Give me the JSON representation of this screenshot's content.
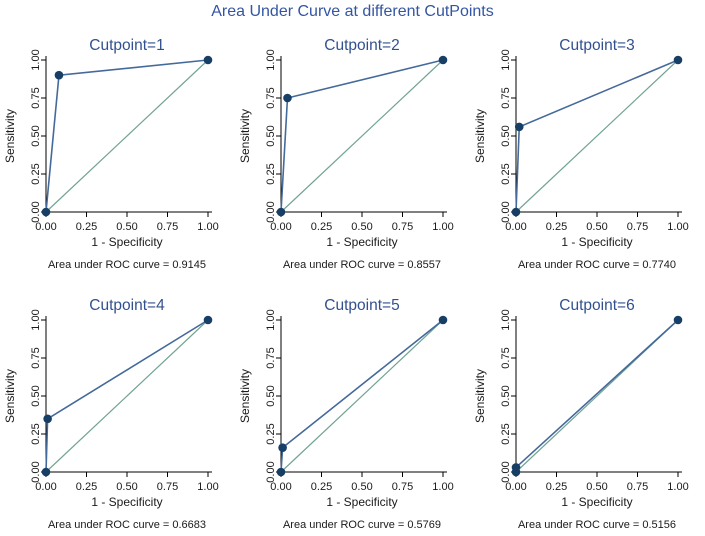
{
  "figure_title": "Area Under Curve at different CutPoints",
  "colors": {
    "figure_title": "#3355a4",
    "panel_title": "#32508f",
    "roc_line": "#44699b",
    "marker": "#173f66",
    "ref_line": "#72a493",
    "axis": "#000000",
    "text": "#1a1a1a"
  },
  "axis": {
    "xlabel": "1 - Specificity",
    "ylabel": "Sensitivity",
    "xlim": [
      0,
      1
    ],
    "ylim": [
      0,
      1
    ],
    "ticks": [
      0,
      0.25,
      0.5,
      0.75,
      1
    ],
    "tick_labels": [
      "0.00",
      "0.25",
      "0.50",
      "0.75",
      "1.00"
    ],
    "grid": "off",
    "legend": "none"
  },
  "chart_data": [
    {
      "type": "line",
      "title": "Cutpoint=1",
      "caption": "Area under ROC curve = 0.9145",
      "auc": 0.9145,
      "xlabel": "1 - Specificity",
      "ylabel": "Sensitivity",
      "xlim": [
        0,
        1
      ],
      "ylim": [
        0,
        1
      ],
      "roc_points": [
        [
          0,
          0
        ],
        [
          0.08,
          0.9
        ],
        [
          1,
          1
        ]
      ],
      "ref_line": [
        [
          0,
          0
        ],
        [
          1,
          1
        ]
      ]
    },
    {
      "type": "line",
      "title": "Cutpoint=2",
      "caption": "Area under ROC curve = 0.8557",
      "auc": 0.8557,
      "xlabel": "1 - Specificity",
      "ylabel": "Sensitivity",
      "xlim": [
        0,
        1
      ],
      "ylim": [
        0,
        1
      ],
      "roc_points": [
        [
          0,
          0
        ],
        [
          0.04,
          0.75
        ],
        [
          1,
          1
        ]
      ],
      "ref_line": [
        [
          0,
          0
        ],
        [
          1,
          1
        ]
      ]
    },
    {
      "type": "line",
      "title": "Cutpoint=3",
      "caption": "Area under ROC curve = 0.7740",
      "auc": 0.774,
      "xlabel": "1 - Specificity",
      "ylabel": "Sensitivity",
      "xlim": [
        0,
        1
      ],
      "ylim": [
        0,
        1
      ],
      "roc_points": [
        [
          0,
          0
        ],
        [
          0.02,
          0.56
        ],
        [
          1,
          1
        ]
      ],
      "ref_line": [
        [
          0,
          0
        ],
        [
          1,
          1
        ]
      ]
    },
    {
      "type": "line",
      "title": "Cutpoint=4",
      "caption": "Area under ROC curve = 0.6683",
      "auc": 0.6683,
      "xlabel": "1 - Specificity",
      "ylabel": "Sensitivity",
      "xlim": [
        0,
        1
      ],
      "ylim": [
        0,
        1
      ],
      "roc_points": [
        [
          0,
          0
        ],
        [
          0.01,
          0.35
        ],
        [
          1,
          1
        ]
      ],
      "ref_line": [
        [
          0,
          0
        ],
        [
          1,
          1
        ]
      ]
    },
    {
      "type": "line",
      "title": "Cutpoint=5",
      "caption": "Area under ROC curve = 0.5769",
      "auc": 0.5769,
      "xlabel": "1 - Specificity",
      "ylabel": "Sensitivity",
      "xlim": [
        0,
        1
      ],
      "ylim": [
        0,
        1
      ],
      "roc_points": [
        [
          0,
          0
        ],
        [
          0.01,
          0.16
        ],
        [
          1,
          1
        ]
      ],
      "ref_line": [
        [
          0,
          0
        ],
        [
          1,
          1
        ]
      ]
    },
    {
      "type": "line",
      "title": "Cutpoint=6",
      "caption": "Area under ROC curve = 0.5156",
      "auc": 0.5156,
      "xlabel": "1 - Specificity",
      "ylabel": "Sensitivity",
      "xlim": [
        0,
        1
      ],
      "ylim": [
        0,
        1
      ],
      "roc_points": [
        [
          0,
          0
        ],
        [
          0,
          0.03
        ],
        [
          1,
          1
        ]
      ],
      "ref_line": [
        [
          0,
          0
        ],
        [
          1,
          1
        ]
      ]
    }
  ]
}
